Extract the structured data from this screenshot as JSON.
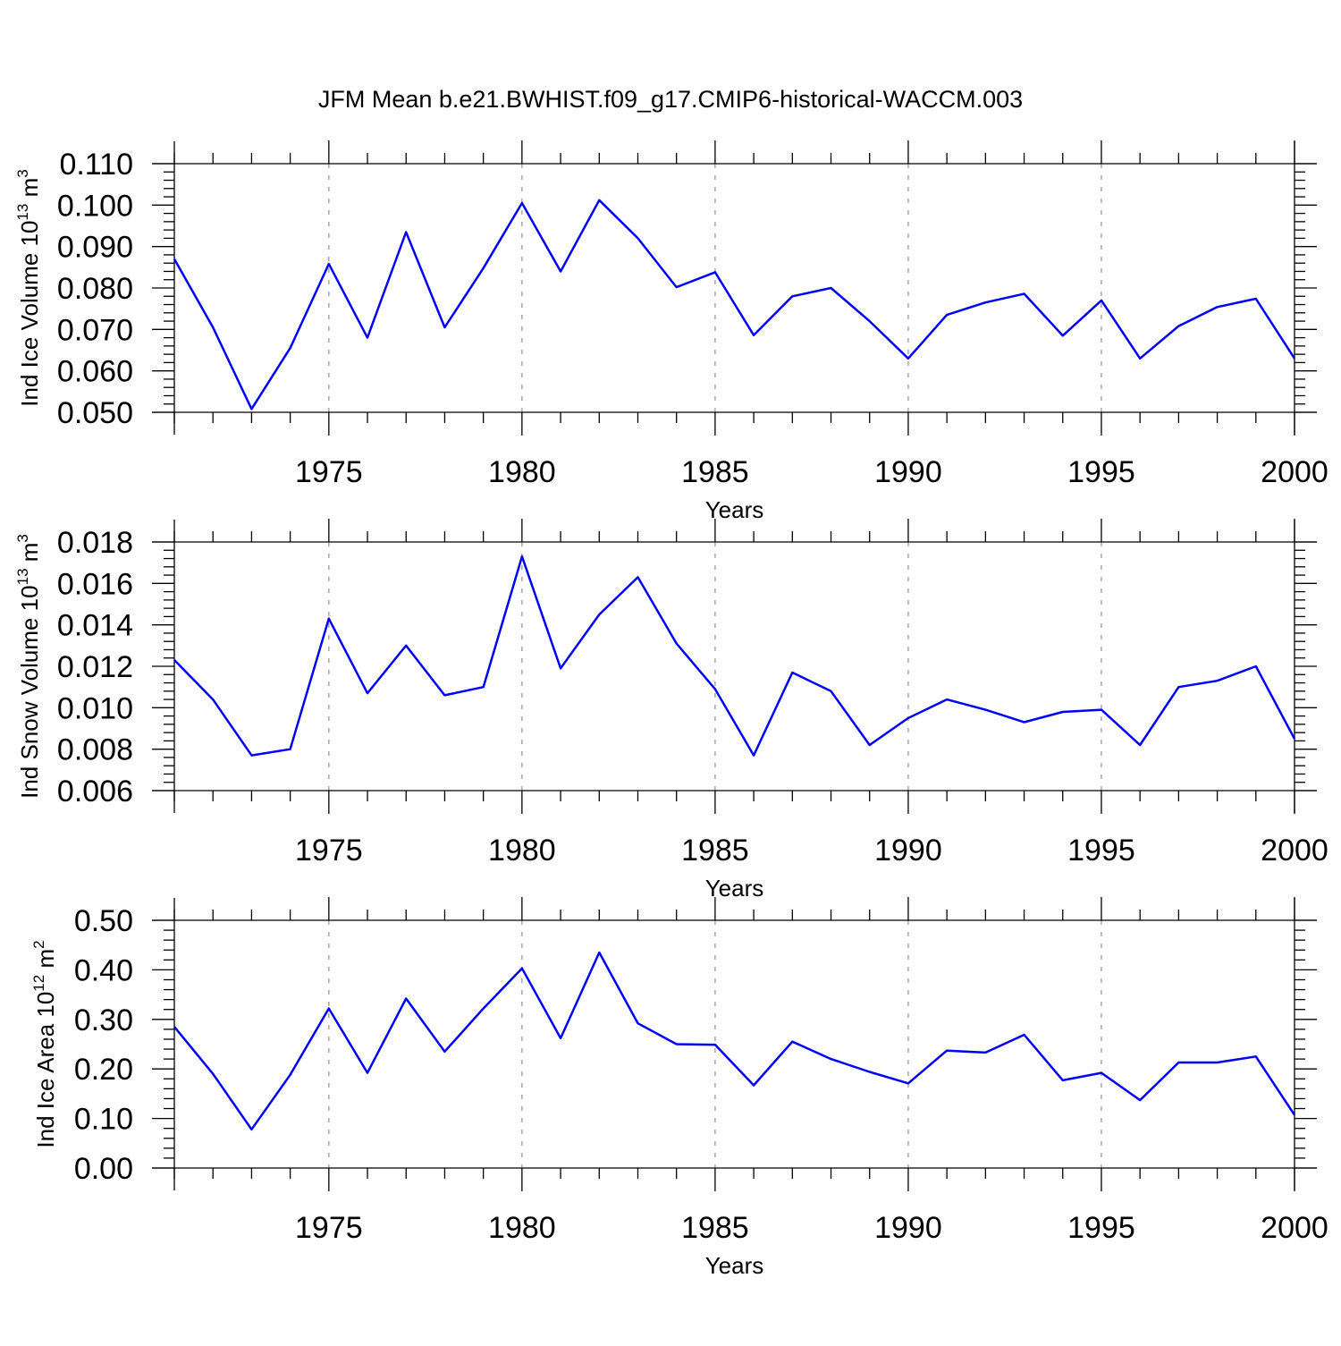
{
  "figure_title": "JFM Mean b.e21.BWHIST.f09_g17.CMIP6-historical-WACCM.003",
  "line_color": "#0000ff",
  "chart_data": [
    {
      "type": "line",
      "ylabel_main": "Ind Ice Volume 10",
      "ylabel_sup": "13",
      "ylabel_unit": " m",
      "ylabel_unit_sup": "3",
      "xlabel": "Years",
      "xlim": [
        1971,
        2000
      ],
      "ylim": [
        0.05,
        0.11
      ],
      "x_ticks": [
        "1975",
        "1980",
        "1985",
        "1990",
        "1995",
        "2000"
      ],
      "y_ticks": [
        "0.050",
        "0.060",
        "0.070",
        "0.080",
        "0.090",
        "0.100",
        "0.110"
      ],
      "x": [
        1971,
        1972,
        1973,
        1974,
        1975,
        1976,
        1977,
        1978,
        1979,
        1980,
        1981,
        1982,
        1983,
        1984,
        1985,
        1986,
        1987,
        1988,
        1989,
        1990,
        1991,
        1992,
        1993,
        1994,
        1995,
        1996,
        1997,
        1998,
        1999,
        2000
      ],
      "values": [
        0.087,
        0.0705,
        0.0508,
        0.0655,
        0.0858,
        0.068,
        0.0935,
        0.0705,
        0.0848,
        0.1005,
        0.084,
        0.1012,
        0.092,
        0.0802,
        0.0838,
        0.0686,
        0.078,
        0.08,
        0.072,
        0.063,
        0.0735,
        0.0765,
        0.0786,
        0.0685,
        0.077,
        0.063,
        0.0708,
        0.0754,
        0.0774,
        0.063
      ]
    },
    {
      "type": "line",
      "ylabel_main": "Ind Snow Volume 10",
      "ylabel_sup": "13",
      "ylabel_unit": " m",
      "ylabel_unit_sup": "3",
      "xlabel": "Years",
      "xlim": [
        1971,
        2000
      ],
      "ylim": [
        0.006,
        0.018
      ],
      "x_ticks": [
        "1975",
        "1980",
        "1985",
        "1990",
        "1995",
        "2000"
      ],
      "y_ticks": [
        "0.006",
        "0.008",
        "0.010",
        "0.012",
        "0.014",
        "0.016",
        "0.018"
      ],
      "x": [
        1971,
        1972,
        1973,
        1974,
        1975,
        1976,
        1977,
        1978,
        1979,
        1980,
        1981,
        1982,
        1983,
        1984,
        1985,
        1986,
        1987,
        1988,
        1989,
        1990,
        1991,
        1992,
        1993,
        1994,
        1995,
        1996,
        1997,
        1998,
        1999,
        2000
      ],
      "values": [
        0.0123,
        0.0104,
        0.0077,
        0.008,
        0.0143,
        0.0107,
        0.013,
        0.0106,
        0.011,
        0.0173,
        0.0119,
        0.0145,
        0.0163,
        0.0131,
        0.0109,
        0.0077,
        0.0117,
        0.0108,
        0.0082,
        0.0095,
        0.0104,
        0.0099,
        0.0093,
        0.0098,
        0.0099,
        0.0082,
        0.011,
        0.0113,
        0.012,
        0.0085
      ]
    },
    {
      "type": "line",
      "ylabel_main": "Ind Ice Area 10",
      "ylabel_sup": "12",
      "ylabel_unit": " m",
      "ylabel_unit_sup": "2",
      "xlabel": "Years",
      "xlim": [
        1971,
        2000
      ],
      "ylim": [
        0.0,
        0.5
      ],
      "x_ticks": [
        "1975",
        "1980",
        "1985",
        "1990",
        "1995",
        "2000"
      ],
      "y_ticks": [
        "0.00",
        "0.10",
        "0.20",
        "0.30",
        "0.40",
        "0.50"
      ],
      "x": [
        1971,
        1972,
        1973,
        1974,
        1975,
        1976,
        1977,
        1978,
        1979,
        1980,
        1981,
        1982,
        1983,
        1984,
        1985,
        1986,
        1987,
        1988,
        1989,
        1990,
        1991,
        1992,
        1993,
        1994,
        1995,
        1996,
        1997,
        1998,
        1999,
        2000
      ],
      "values": [
        0.285,
        0.19,
        0.078,
        0.188,
        0.322,
        0.192,
        0.342,
        0.235,
        0.322,
        0.403,
        0.262,
        0.435,
        0.292,
        0.25,
        0.249,
        0.167,
        0.255,
        0.22,
        0.194,
        0.171,
        0.237,
        0.233,
        0.269,
        0.177,
        0.192,
        0.137,
        0.213,
        0.213,
        0.225,
        0.107
      ]
    }
  ]
}
